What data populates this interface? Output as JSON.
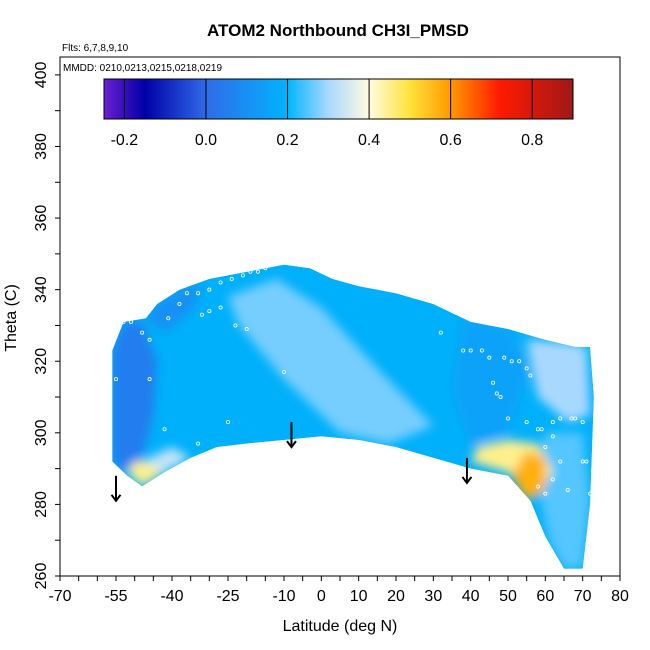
{
  "chart_data": {
    "type": "heatmap",
    "title": "ATOM2 Northbound CH3I_PMSD",
    "flights_label": "Flts: 6,7,8,9,10",
    "dates_label": "MMDD: 0210,0213,0215,0218,0219",
    "xlabel": "Latitude (deg N)",
    "ylabel": "Theta (C)",
    "xlim": [
      -70,
      80
    ],
    "ylim": [
      260,
      405
    ],
    "x_ticks": [
      -70,
      -55,
      -40,
      -25,
      -10,
      0,
      10,
      20,
      30,
      40,
      50,
      60,
      70,
      80
    ],
    "y_ticks": [
      260,
      280,
      300,
      320,
      340,
      360,
      380,
      400
    ],
    "colorbar": {
      "range": [
        -0.25,
        0.9
      ],
      "ticks": [
        -0.2,
        0.0,
        0.2,
        0.4,
        0.6,
        0.8
      ],
      "tick_labels": [
        "-0.2",
        "0.0",
        "0.2",
        "0.4",
        "0.6",
        "0.8"
      ],
      "stops": [
        {
          "value": -0.25,
          "color": "#6a1fd0"
        },
        {
          "value": -0.15,
          "color": "#0000a8"
        },
        {
          "value": 0.0,
          "color": "#2f6be8"
        },
        {
          "value": 0.2,
          "color": "#00b4ff"
        },
        {
          "value": 0.3,
          "color": "#a9d8ff"
        },
        {
          "value": 0.4,
          "color": "#fffce0"
        },
        {
          "value": 0.5,
          "color": "#ffe23a"
        },
        {
          "value": 0.6,
          "color": "#ff9a00"
        },
        {
          "value": 0.72,
          "color": "#ff1a00"
        },
        {
          "value": 0.9,
          "color": "#a01818"
        }
      ]
    },
    "field_outline": [
      [
        -56,
        292
      ],
      [
        -56,
        323
      ],
      [
        -53,
        331
      ],
      [
        -47,
        332
      ],
      [
        -44,
        336
      ],
      [
        -38,
        340
      ],
      [
        -30,
        343
      ],
      [
        -20,
        345
      ],
      [
        -10,
        347
      ],
      [
        -3,
        346
      ],
      [
        3,
        343
      ],
      [
        10,
        341
      ],
      [
        20,
        339
      ],
      [
        30,
        336
      ],
      [
        40,
        331
      ],
      [
        50,
        329
      ],
      [
        60,
        326
      ],
      [
        68,
        324
      ],
      [
        72,
        324
      ],
      [
        73,
        310
      ],
      [
        72,
        280
      ],
      [
        70,
        262
      ],
      [
        65,
        262
      ],
      [
        60,
        271
      ],
      [
        56,
        281
      ],
      [
        50,
        288
      ],
      [
        40,
        290
      ],
      [
        30,
        293
      ],
      [
        20,
        296
      ],
      [
        10,
        298
      ],
      [
        0,
        299
      ],
      [
        -10,
        298
      ],
      [
        -20,
        297
      ],
      [
        -28,
        296
      ],
      [
        -35,
        293
      ],
      [
        -42,
        289
      ],
      [
        -48,
        285
      ],
      [
        -52,
        288
      ]
    ],
    "field_regions": [
      {
        "name": "western-edge",
        "value": 0.05,
        "points": [
          [
            -56,
            292
          ],
          [
            -56,
            323
          ],
          [
            -53,
            331
          ],
          [
            -48,
            331
          ],
          [
            -44,
            320
          ],
          [
            -45,
            305
          ],
          [
            -48,
            293
          ],
          [
            -53,
            289
          ]
        ]
      },
      {
        "name": "upper-west",
        "value": 0.1,
        "points": [
          [
            -47,
            332
          ],
          [
            -44,
            336
          ],
          [
            -38,
            340
          ],
          [
            -32,
            342
          ],
          [
            -34,
            335
          ],
          [
            -42,
            328
          ]
        ]
      },
      {
        "name": "central-light",
        "value": 0.27,
        "points": [
          [
            -25,
            338
          ],
          [
            -12,
            343
          ],
          [
            0,
            335
          ],
          [
            15,
            318
          ],
          [
            30,
            302
          ],
          [
            18,
            297
          ],
          [
            5,
            300
          ],
          [
            -10,
            315
          ],
          [
            -22,
            330
          ]
        ]
      },
      {
        "name": "east-high",
        "value": 0.15,
        "points": [
          [
            38,
            332
          ],
          [
            50,
            329
          ],
          [
            56,
            318
          ],
          [
            50,
            300
          ],
          [
            40,
            296
          ],
          [
            35,
            312
          ]
        ]
      },
      {
        "name": "arctic-light",
        "value": 0.3,
        "points": [
          [
            55,
            326
          ],
          [
            66,
            325
          ],
          [
            71,
            324
          ],
          [
            72,
            305
          ],
          [
            66,
            303
          ],
          [
            58,
            310
          ]
        ]
      },
      {
        "name": "arctic-column",
        "value": 0.25,
        "points": [
          [
            60,
            300
          ],
          [
            70,
            300
          ],
          [
            72,
            280
          ],
          [
            70,
            262
          ],
          [
            65,
            262
          ],
          [
            61,
            270
          ],
          [
            58,
            285
          ]
        ]
      },
      {
        "name": "yellow-mid",
        "value": 0.45,
        "points": [
          [
            40,
            292
          ],
          [
            50,
            289
          ],
          [
            57,
            282
          ],
          [
            62,
            289
          ],
          [
            58,
            297
          ],
          [
            50,
            298
          ],
          [
            42,
            296
          ]
        ]
      },
      {
        "name": "orange-core",
        "value": 0.57,
        "points": [
          [
            51,
            288
          ],
          [
            55,
            281
          ],
          [
            60,
            284
          ],
          [
            60,
            293
          ],
          [
            55,
            295
          ]
        ]
      },
      {
        "name": "south-yellow",
        "value": 0.45,
        "points": [
          [
            -52,
            289
          ],
          [
            -48,
            285
          ],
          [
            -42,
            289
          ],
          [
            -46,
            292
          ],
          [
            -50,
            292
          ]
        ]
      },
      {
        "name": "south-light",
        "value": 0.33,
        "points": [
          [
            -48,
            292
          ],
          [
            -42,
            289
          ],
          [
            -35,
            293
          ],
          [
            -40,
            296
          ]
        ]
      }
    ],
    "arrows": [
      {
        "x": -55,
        "theta_from": 288,
        "theta_to": 281
      },
      {
        "x": -8,
        "theta_from": 303,
        "theta_to": 296
      },
      {
        "x": 39,
        "theta_from": 293,
        "theta_to": 286
      }
    ],
    "sample_points": [
      [
        -55,
        315
      ],
      [
        -53,
        331
      ],
      [
        -51,
        331
      ],
      [
        -48,
        328
      ],
      [
        -46,
        326
      ],
      [
        -46,
        315
      ],
      [
        -42,
        301
      ],
      [
        -41,
        332
      ],
      [
        -38,
        336
      ],
      [
        -36,
        339
      ],
      [
        -33,
        339
      ],
      [
        -30,
        340
      ],
      [
        -27,
        342
      ],
      [
        -24,
        343
      ],
      [
        -21,
        344
      ],
      [
        -19,
        345
      ],
      [
        -17,
        345
      ],
      [
        -15,
        346
      ],
      [
        -14,
        347
      ],
      [
        -32,
        333
      ],
      [
        -30,
        334
      ],
      [
        -27,
        335
      ],
      [
        -23,
        330
      ],
      [
        -20,
        329
      ],
      [
        -10,
        317
      ],
      [
        -25,
        303
      ],
      [
        -33,
        297
      ],
      [
        32,
        328
      ],
      [
        38,
        323
      ],
      [
        40,
        323
      ],
      [
        43,
        323
      ],
      [
        45,
        321
      ],
      [
        49,
        321
      ],
      [
        51,
        320
      ],
      [
        53,
        320
      ],
      [
        55,
        318
      ],
      [
        56,
        316
      ],
      [
        46,
        314
      ],
      [
        47,
        311
      ],
      [
        48,
        310
      ],
      [
        50,
        304
      ],
      [
        55,
        303
      ],
      [
        58,
        301
      ],
      [
        62,
        303
      ],
      [
        64,
        304
      ],
      [
        67,
        304
      ],
      [
        68,
        304
      ],
      [
        70,
        303
      ],
      [
        59,
        301
      ],
      [
        60,
        296
      ],
      [
        62,
        299
      ],
      [
        64,
        292
      ],
      [
        70,
        292
      ],
      [
        71,
        292
      ],
      [
        58,
        285
      ],
      [
        66,
        284
      ],
      [
        72,
        283
      ],
      [
        73,
        276
      ],
      [
        62,
        287
      ],
      [
        60,
        283
      ],
      [
        72,
        262
      ]
    ]
  }
}
